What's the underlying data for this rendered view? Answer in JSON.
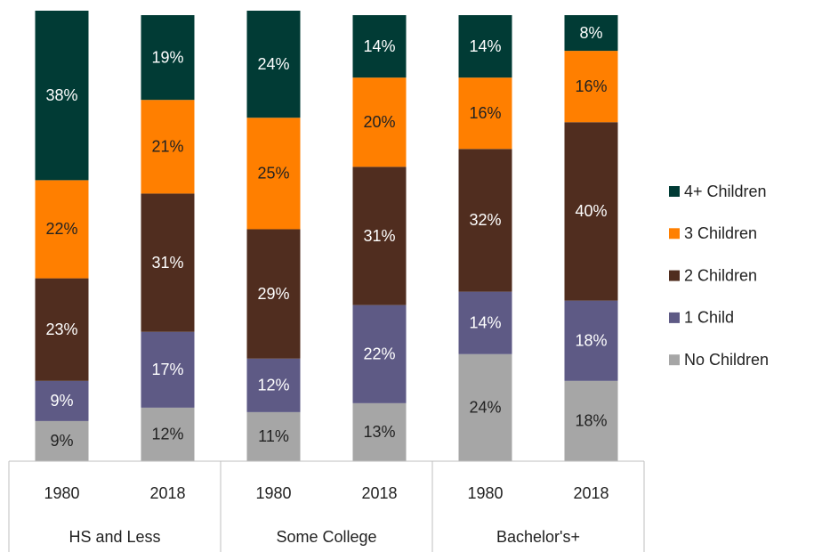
{
  "chart_data": {
    "type": "stacked_bar",
    "categories": [
      "1980",
      "2018",
      "1980",
      "2018",
      "1980",
      "2018"
    ],
    "groups": [
      "HS and Less",
      "Some College",
      "Bachelor's+"
    ],
    "series": [
      {
        "name": "No Children",
        "color": "#a6a6a6",
        "label_color": "#222222",
        "values": [
          9,
          12,
          11,
          13,
          24,
          18
        ],
        "value_labels": [
          "9%",
          "12%",
          "11%",
          "13%",
          "24%",
          "18%"
        ]
      },
      {
        "name": "1 Child",
        "color": "#5e5a85",
        "label_color": "#ffffff",
        "values": [
          9,
          17,
          12,
          22,
          14,
          18
        ],
        "value_labels": [
          "9%",
          "17%",
          "12%",
          "22%",
          "14%",
          "18%"
        ]
      },
      {
        "name": "2 Children",
        "color": "#502d1f",
        "label_color": "#ffffff",
        "values": [
          23,
          31,
          29,
          31,
          32,
          40
        ],
        "value_labels": [
          "23%",
          "31%",
          "29%",
          "31%",
          "32%",
          "40%"
        ]
      },
      {
        "name": "3 Children",
        "color": "#ff7f00",
        "label_color": "#222222",
        "values": [
          22,
          21,
          25,
          20,
          16,
          16
        ],
        "value_labels": [
          "22%",
          "21%",
          "25%",
          "20%",
          "16%",
          "16%"
        ]
      },
      {
        "name": "4+ Children",
        "color": "#013b35",
        "label_color": "#ffffff",
        "values": [
          38,
          19,
          24,
          14,
          14,
          8
        ],
        "value_labels": [
          "38%",
          "19%",
          "24%",
          "14%",
          "14%",
          "8%"
        ]
      }
    ]
  }
}
